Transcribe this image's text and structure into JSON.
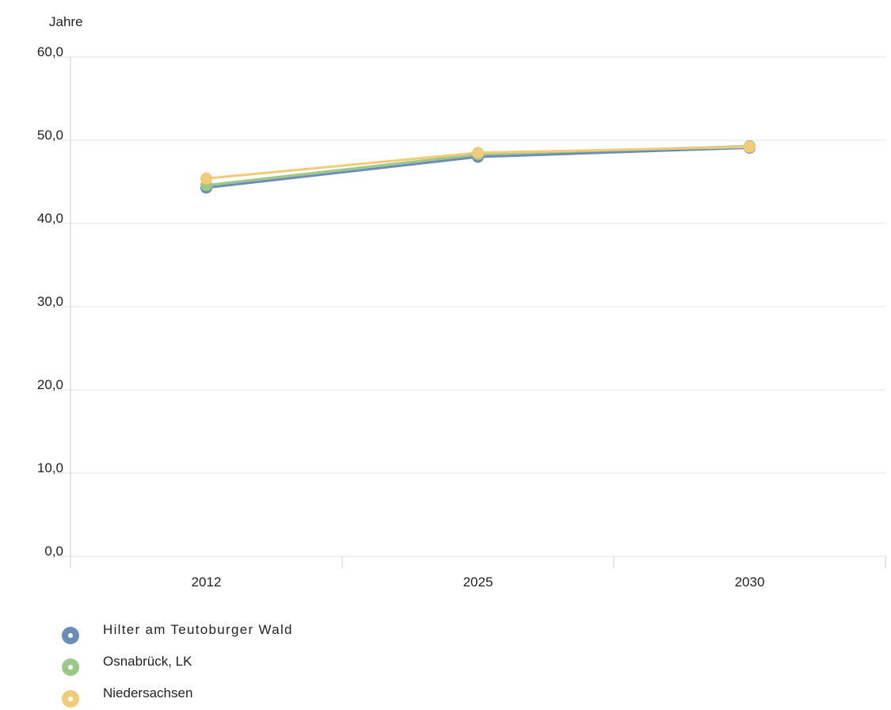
{
  "chart_data": {
    "type": "line",
    "title": "",
    "xlabel": "",
    "ylabel": "Jahre",
    "categories": [
      "2012",
      "2025",
      "2030"
    ],
    "ylim": [
      0,
      60
    ],
    "yticks": [
      "0,0",
      "10,0",
      "20,0",
      "30,0",
      "40,0",
      "50,0",
      "60,0"
    ],
    "grid": true,
    "legend_position": "bottom-left",
    "series": [
      {
        "name": "Hilter am Teutoburger Wald",
        "color": "#6b8cb5",
        "values": [
          44.3,
          48.0,
          49.1
        ]
      },
      {
        "name": "Osnabrück, LK",
        "color": "#9cc788",
        "values": [
          44.6,
          48.3,
          49.3
        ]
      },
      {
        "name": "Niedersachsen",
        "color": "#efcb7a",
        "values": [
          45.4,
          48.5,
          49.2
        ]
      }
    ]
  }
}
